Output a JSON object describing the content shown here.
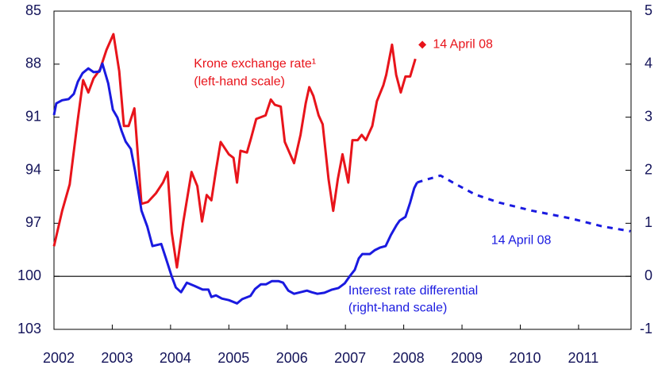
{
  "chart_data": {
    "type": "line",
    "xlim": [
      2002,
      2011.9
    ],
    "xticks": [
      2002,
      2003,
      2004,
      2005,
      2006,
      2007,
      2008,
      2009,
      2010,
      2011
    ],
    "ylim": [
      85,
      103
    ],
    "y_inverted": true,
    "yticks": [
      85,
      88,
      91,
      94,
      97,
      100,
      103
    ],
    "y2lim": [
      -1,
      5
    ],
    "y2ticks": [
      5,
      4,
      3,
      2,
      1,
      0,
      -1
    ],
    "hlines": [
      {
        "axis": "y2",
        "value": 0
      }
    ],
    "series": [
      {
        "color": "#e8141b",
        "axis": "y",
        "x": [
          2002.0,
          2002.14,
          2002.27,
          2002.41,
          2002.5,
          2002.59,
          2002.68,
          2002.79,
          2002.9,
          2003.02,
          2003.12,
          2003.2,
          2003.28,
          2003.38,
          2003.5,
          2003.61,
          2003.75,
          2003.87,
          2003.95,
          2004.02,
          2004.11,
          2004.22,
          2004.36,
          2004.46,
          2004.54,
          2004.62,
          2004.7,
          2004.78,
          2004.86,
          2005.0,
          2005.08,
          2005.14,
          2005.2,
          2005.31,
          2005.38,
          2005.47,
          2005.63,
          2005.72,
          2005.79,
          2005.89,
          2005.96,
          2006.12,
          2006.23,
          2006.32,
          2006.38,
          2006.45,
          2006.54,
          2006.61,
          2006.71,
          2006.79,
          2006.87,
          2006.95,
          2007.05,
          2007.12,
          2007.21,
          2007.28,
          2007.35,
          2007.46,
          2007.54,
          2007.65,
          2007.7,
          2007.8,
          2007.87,
          2007.95,
          2008.03,
          2008.11,
          2008.2
        ],
        "values": [
          98.3,
          96.3,
          94.8,
          91.1,
          88.9,
          89.6,
          88.8,
          88.3,
          87.2,
          86.3,
          88.4,
          91.5,
          91.5,
          90.5,
          95.9,
          95.8,
          95.3,
          94.7,
          94.1,
          97.5,
          99.5,
          96.9,
          94.1,
          94.9,
          96.9,
          95.4,
          95.7,
          94.0,
          92.4,
          93.1,
          93.3,
          94.7,
          92.9,
          93.0,
          92.2,
          91.1,
          90.9,
          90.0,
          90.3,
          90.4,
          92.4,
          93.6,
          92.0,
          90.2,
          89.3,
          89.8,
          90.9,
          91.4,
          94.5,
          96.3,
          94.5,
          93.1,
          94.7,
          92.3,
          92.3,
          92.0,
          92.3,
          91.5,
          90.1,
          89.2,
          88.6,
          86.9,
          88.6,
          89.6,
          88.7,
          88.7,
          87.7
        ]
      },
      {
        "color": "#e8141b",
        "axis": "y",
        "marker": "diamond",
        "x": [
          2008.32
        ],
        "values": [
          86.9
        ]
      },
      {
        "color": "#1a1ae0",
        "axis": "y2",
        "x": [
          2002.0,
          2002.04,
          2002.14,
          2002.25,
          2002.34,
          2002.41,
          2002.49,
          2002.59,
          2002.68,
          2002.78,
          2002.83,
          2002.93,
          2003.01,
          2003.09,
          2003.16,
          2003.23,
          2003.32,
          2003.39,
          2003.5,
          2003.6,
          2003.69,
          2003.84,
          2003.92,
          2004.02,
          2004.09,
          2004.18,
          2004.28,
          2004.41,
          2004.55,
          2004.65,
          2004.7,
          2004.78,
          2004.88,
          2005.0,
          2005.14,
          2005.23,
          2005.37,
          2005.45,
          2005.55,
          2005.64,
          2005.74,
          2005.85,
          2005.93,
          2006.02,
          2006.12,
          2006.23,
          2006.34,
          2006.42,
          2006.52,
          2006.64,
          2006.77,
          2006.88,
          2006.99,
          2007.08,
          2007.16,
          2007.23,
          2007.29,
          2007.42,
          2007.5,
          2007.59,
          2007.69,
          2007.78,
          2007.88,
          2007.93,
          2008.03,
          2008.11,
          2008.18,
          2008.23
        ],
        "values": [
          3.04,
          3.26,
          3.32,
          3.34,
          3.44,
          3.67,
          3.83,
          3.92,
          3.85,
          3.86,
          4.01,
          3.64,
          3.14,
          2.99,
          2.74,
          2.54,
          2.4,
          1.99,
          1.24,
          0.94,
          0.57,
          0.61,
          0.34,
          0.0,
          -0.21,
          -0.3,
          -0.12,
          -0.18,
          -0.25,
          -0.25,
          -0.39,
          -0.36,
          -0.42,
          -0.45,
          -0.51,
          -0.43,
          -0.37,
          -0.24,
          -0.15,
          -0.15,
          -0.09,
          -0.09,
          -0.12,
          -0.27,
          -0.33,
          -0.3,
          -0.27,
          -0.3,
          -0.33,
          -0.31,
          -0.25,
          -0.22,
          -0.13,
          0.01,
          0.12,
          0.34,
          0.42,
          0.42,
          0.49,
          0.54,
          0.57,
          0.78,
          0.97,
          1.05,
          1.12,
          1.39,
          1.66,
          1.77
        ]
      },
      {
        "color": "#1a1ae0",
        "axis": "y2",
        "dash": true,
        "x": [
          2008.23,
          2008.41,
          2008.63,
          2008.89,
          2009.23,
          2009.64,
          2010.19,
          2010.87,
          2011.41,
          2011.89
        ],
        "values": [
          1.77,
          1.83,
          1.9,
          1.74,
          1.54,
          1.39,
          1.24,
          1.09,
          0.94,
          0.85
        ]
      }
    ],
    "annotations": [
      {
        "text": "Krone exchange rate¹",
        "x": 2004.4,
        "y": 88,
        "axis": "y",
        "color": "#e8141b"
      },
      {
        "text": "(left-hand scale)",
        "x": 2004.4,
        "y": 89,
        "axis": "y",
        "color": "#e8141b"
      },
      {
        "text": "14 April 08",
        "x": 2008.5,
        "y": 86.9,
        "axis": "y",
        "color": "#e8141b"
      },
      {
        "text": "14 April 08",
        "x": 2009.5,
        "y": 0.67,
        "axis": "y2",
        "color": "#1a1ae0"
      },
      {
        "text": "Interest rate differential",
        "x": 2007.05,
        "y": -0.28,
        "axis": "y2",
        "color": "#1a1ae0"
      },
      {
        "text": "(right-hand scale)",
        "x": 2007.05,
        "y": -0.6,
        "axis": "y2",
        "color": "#1a1ae0"
      }
    ]
  }
}
